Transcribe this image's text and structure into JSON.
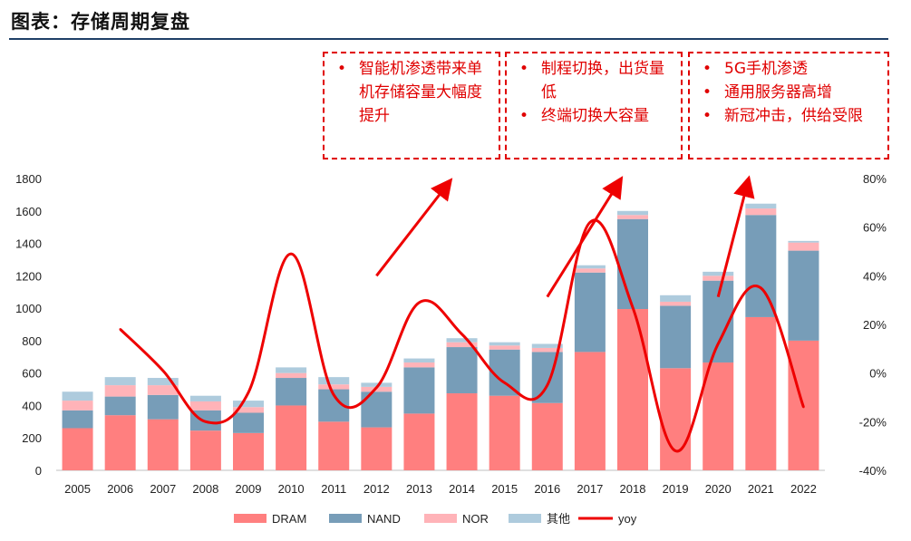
{
  "header": {
    "title": "图表：存储周期复盘"
  },
  "annotations": [
    {
      "items": [
        "智能机渗透带来单机存储容量大幅度提升"
      ]
    },
    {
      "items": [
        "制程切换，出货量低",
        "终端切换大容量"
      ]
    },
    {
      "items": [
        "5G手机渗透",
        "通用服务器高增",
        "新冠冲击，供给受限"
      ]
    }
  ],
  "colors": {
    "DRAM": "#ff7f7f",
    "NAND": "#779db8",
    "NOR": "#ffb3b8",
    "其他": "#aecbdd",
    "yoy": "#ee0000",
    "arrow": "#ee0000"
  },
  "chart_data": {
    "type": "bar",
    "stacked": true,
    "categories": [
      "2005",
      "2006",
      "2007",
      "2008",
      "2009",
      "2010",
      "2011",
      "2012",
      "2013",
      "2014",
      "2015",
      "2016",
      "2017",
      "2018",
      "2019",
      "2020",
      "2021",
      "2022"
    ],
    "series": [
      {
        "name": "DRAM",
        "values": [
          260,
          340,
          315,
          245,
          230,
          400,
          300,
          265,
          350,
          475,
          460,
          415,
          730,
          995,
          630,
          665,
          945,
          800
        ]
      },
      {
        "name": "NAND",
        "values": [
          110,
          115,
          150,
          125,
          125,
          170,
          200,
          220,
          285,
          285,
          285,
          315,
          490,
          555,
          385,
          505,
          630,
          555
        ]
      },
      {
        "name": "NOR",
        "values": [
          60,
          70,
          60,
          55,
          35,
          30,
          30,
          30,
          30,
          30,
          25,
          25,
          25,
          25,
          25,
          30,
          40,
          50
        ]
      },
      {
        "name": "其他",
        "values": [
          55,
          50,
          45,
          35,
          40,
          35,
          45,
          25,
          25,
          25,
          20,
          25,
          20,
          25,
          40,
          25,
          30,
          10
        ]
      }
    ],
    "line_series": {
      "name": "yoy",
      "axis": "right",
      "values": [
        null,
        18,
        1,
        -20,
        -8,
        49,
        -9,
        -6,
        29,
        16,
        -4,
        -5,
        62,
        27,
        -32,
        12,
        35,
        -14
      ]
    },
    "y_left": {
      "min": 0,
      "max": 1800,
      "ticks": [
        "0",
        "200",
        "400",
        "600",
        "800",
        "1000",
        "1200",
        "1400",
        "1600",
        "1800"
      ]
    },
    "y_right": {
      "min": -40,
      "max": 80,
      "ticks": [
        "-40%",
        "-20%",
        "0%",
        "20%",
        "40%",
        "60%",
        "80%"
      ]
    },
    "legend": {
      "position": "bottom",
      "labels": [
        "DRAM",
        "NAND",
        "NOR",
        "其他",
        "yoy"
      ]
    },
    "arrows": [
      {
        "from": [
          "2012",
          1200
        ],
        "to": [
          "2014",
          1800
        ]
      },
      {
        "from": [
          "2016",
          1070
        ],
        "to": [
          "2018",
          1810
        ]
      },
      {
        "from": [
          "2020",
          1070
        ],
        "to": [
          "2021",
          1810
        ]
      }
    ]
  }
}
